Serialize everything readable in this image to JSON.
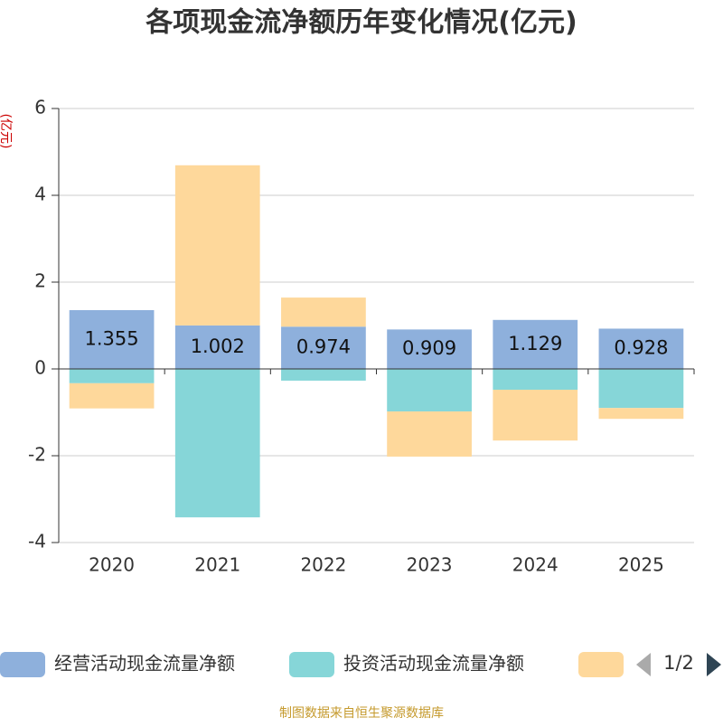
{
  "chart_data": {
    "type": "bar",
    "stacked": true,
    "title": "各项现金流净额历年变化情况(亿元)",
    "y_label": "(亿元)",
    "categories": [
      "2020",
      "2021",
      "2022",
      "2023",
      "2024",
      "2025"
    ],
    "series": [
      {
        "name": "经营活动现金流量净额",
        "color": "#8eb0dc",
        "values": [
          1.355,
          1.002,
          0.974,
          0.909,
          1.129,
          0.928
        ],
        "show_labels": true
      },
      {
        "name": "投资活动现金流量净额",
        "color": "#86d6d8",
        "values": [
          -0.33,
          -3.42,
          -0.27,
          -0.98,
          -0.48,
          -0.9
        ]
      },
      {
        "color": "#fed89b",
        "values": [
          -0.58,
          3.69,
          0.67,
          -1.04,
          -1.17,
          -0.25
        ]
      }
    ],
    "ylim": [
      -4,
      6
    ],
    "yticks": [
      -4,
      -2,
      0,
      2,
      4,
      6
    ],
    "grid": true,
    "legend_page": "1/2",
    "source": "制图数据来自恒生聚源数据库"
  }
}
